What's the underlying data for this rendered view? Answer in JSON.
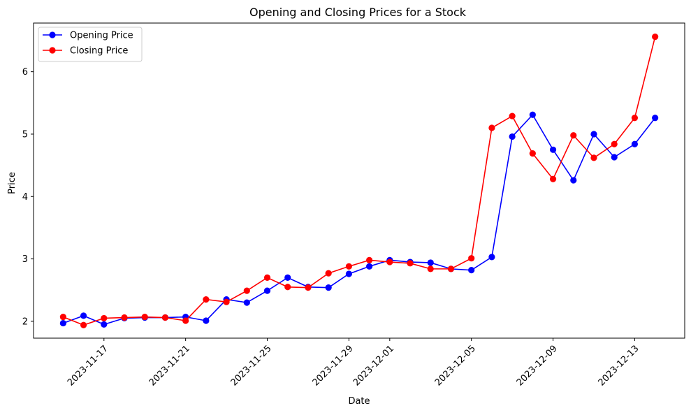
{
  "chart_data": {
    "type": "line",
    "title": "Opening and Closing Prices for a Stock",
    "xlabel": "Date",
    "ylabel": "Price",
    "x": [
      "2023-11-15",
      "2023-11-16",
      "2023-11-17",
      "2023-11-18",
      "2023-11-19",
      "2023-11-20",
      "2023-11-21",
      "2023-11-22",
      "2023-11-23",
      "2023-11-24",
      "2023-11-25",
      "2023-11-26",
      "2023-11-27",
      "2023-11-28",
      "2023-11-29",
      "2023-11-30",
      "2023-12-01",
      "2023-12-02",
      "2023-12-03",
      "2023-12-04",
      "2023-12-05",
      "2023-12-06",
      "2023-12-07",
      "2023-12-08",
      "2023-12-09",
      "2023-12-10",
      "2023-12-11",
      "2023-12-12",
      "2023-12-13",
      "2023-12-14"
    ],
    "xticks": [
      "2023-11-17",
      "2023-11-21",
      "2023-11-25",
      "2023-11-29",
      "2023-12-01",
      "2023-12-05",
      "2023-12-09",
      "2023-12-13"
    ],
    "yticks": [
      2,
      3,
      4,
      5,
      6
    ],
    "xlim": [
      "2023-11-13.55",
      "2023-12-15.45"
    ],
    "ylim": [
      1.73,
      6.78
    ],
    "grid": false,
    "legend_position": "upper-left",
    "series": [
      {
        "name": "Opening Price",
        "color": "#0000ff",
        "marker": "circle",
        "values": [
          1.97,
          2.09,
          1.95,
          2.05,
          2.06,
          2.06,
          2.07,
          2.01,
          2.35,
          2.3,
          2.49,
          2.7,
          2.55,
          2.54,
          2.76,
          2.88,
          2.98,
          2.95,
          2.94,
          2.84,
          2.82,
          3.03,
          4.96,
          5.31,
          4.75,
          4.26,
          5.0,
          4.63,
          4.84,
          5.26
        ]
      },
      {
        "name": "Closing Price",
        "color": "#ff0000",
        "marker": "circle",
        "values": [
          2.07,
          1.94,
          2.05,
          2.06,
          2.07,
          2.06,
          2.01,
          2.35,
          2.31,
          2.49,
          2.7,
          2.55,
          2.54,
          2.77,
          2.88,
          2.98,
          2.95,
          2.93,
          2.84,
          2.84,
          3.01,
          5.1,
          5.29,
          4.69,
          4.28,
          4.98,
          4.62,
          4.84,
          5.26,
          6.56
        ]
      }
    ]
  }
}
